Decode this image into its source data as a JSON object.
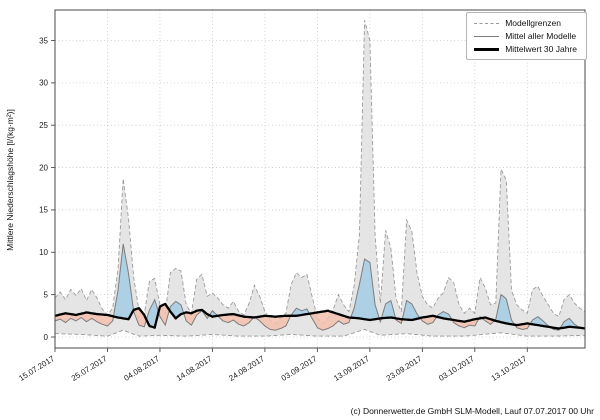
{
  "figure": {
    "caption": "(c) Donnerwetter.de GmbH SLM-Modell, Lauf 07.07.2017 00 Uhr"
  },
  "legend": {
    "items": [
      {
        "label": "Modellgrenzen",
        "style": "dashed-gray"
      },
      {
        "label": "Mittel aller Modelle",
        "style": "solid-gray"
      },
      {
        "label": "Mittelwert 30 Jahre",
        "style": "solid-black-thick"
      }
    ]
  },
  "chart_data": {
    "type": "line",
    "title": "",
    "xlabel": "",
    "ylabel": "Mittlere Niederschlagshöhe [l/(kg·m²)]",
    "x_unit": "Tage ab 15.07.2017",
    "xlim": [
      0,
      101
    ],
    "ylim": [
      -1.3,
      38.6
    ],
    "grid": true,
    "legend_position": "top-right",
    "y_ticks": [
      0,
      5,
      10,
      15,
      20,
      25,
      30,
      35
    ],
    "x_ticks": [
      {
        "x": 0,
        "label": "15.07.2017"
      },
      {
        "x": 10,
        "label": "25.07.2017"
      },
      {
        "x": 20,
        "label": "04.08.2017"
      },
      {
        "x": 30,
        "label": "14.08.2017"
      },
      {
        "x": 40,
        "label": "24.08.2017"
      },
      {
        "x": 50,
        "label": "03.09.2017"
      },
      {
        "x": 60,
        "label": "13.09.2017"
      },
      {
        "x": 70,
        "label": "23.09.2017"
      },
      {
        "x": 80,
        "label": "03.10.2017"
      },
      {
        "x": 90,
        "label": "13.10.2017"
      }
    ],
    "colors": {
      "band": "#dcdcdc",
      "boundary": "#9b9b9b",
      "mean": "#7d7d7d",
      "climate": "#000000",
      "above": "#a7cde4",
      "below": "#f4c1ae",
      "below_edge": "#e39a86",
      "grid": "#c9c9c9",
      "frame": "#4a4a4a",
      "text": "#1a1a1a"
    },
    "series": [
      {
        "key": "upper",
        "name": "Modellgrenze (oben)",
        "points": [
          [
            0,
            4.6
          ],
          [
            1,
            5.3
          ],
          [
            2,
            4.4
          ],
          [
            3,
            5.6
          ],
          [
            4,
            4.9
          ],
          [
            5,
            5.7
          ],
          [
            6,
            4.3
          ],
          [
            7,
            5.6
          ],
          [
            8,
            4.6
          ],
          [
            9,
            3.3
          ],
          [
            10,
            2.6
          ],
          [
            11,
            3.4
          ],
          [
            12,
            8
          ],
          [
            13,
            18.7
          ],
          [
            14,
            14
          ],
          [
            15,
            7
          ],
          [
            16,
            3.2
          ],
          [
            17,
            2.6
          ],
          [
            18,
            6.6
          ],
          [
            19,
            6.9
          ],
          [
            20,
            3.8
          ],
          [
            21,
            2.8
          ],
          [
            22,
            7.6
          ],
          [
            23,
            8.1
          ],
          [
            24,
            7.8
          ],
          [
            25,
            3.8
          ],
          [
            26,
            2.8
          ],
          [
            27,
            6.8
          ],
          [
            28,
            7.4
          ],
          [
            29,
            4.8
          ],
          [
            30,
            5.2
          ],
          [
            31,
            4.6
          ],
          [
            32,
            3.8
          ],
          [
            33,
            3.4
          ],
          [
            34,
            4.2
          ],
          [
            35,
            3
          ],
          [
            36,
            2.6
          ],
          [
            37,
            4
          ],
          [
            38,
            6.1
          ],
          [
            39,
            4.8
          ],
          [
            40,
            3
          ],
          [
            41,
            2
          ],
          [
            42,
            1.6
          ],
          [
            43,
            2.2
          ],
          [
            44,
            2.8
          ],
          [
            45,
            6.2
          ],
          [
            46,
            7.6
          ],
          [
            47,
            7
          ],
          [
            48,
            7.4
          ],
          [
            49,
            4.8
          ],
          [
            50,
            2.2
          ],
          [
            51,
            1.6
          ],
          [
            52,
            2.2
          ],
          [
            53,
            3.2
          ],
          [
            54,
            5
          ],
          [
            55,
            3.8
          ],
          [
            56,
            3
          ],
          [
            57,
            6
          ],
          [
            58,
            12
          ],
          [
            59,
            37.4
          ],
          [
            60,
            35
          ],
          [
            61,
            12
          ],
          [
            62,
            4
          ],
          [
            63,
            12.6
          ],
          [
            64,
            10.5
          ],
          [
            65,
            4.5
          ],
          [
            66,
            3
          ],
          [
            67,
            13.8
          ],
          [
            68,
            12.5
          ],
          [
            69,
            7.5
          ],
          [
            70,
            4.8
          ],
          [
            71,
            3.8
          ],
          [
            72,
            3.4
          ],
          [
            73,
            4.6
          ],
          [
            74,
            5.2
          ],
          [
            75,
            7
          ],
          [
            76,
            6.4
          ],
          [
            77,
            3.8
          ],
          [
            78,
            2.8
          ],
          [
            79,
            3.4
          ],
          [
            80,
            2.8
          ],
          [
            81,
            7
          ],
          [
            82,
            5.8
          ],
          [
            83,
            3.8
          ],
          [
            84,
            4
          ],
          [
            85,
            19.8
          ],
          [
            86,
            18.5
          ],
          [
            87,
            5.5
          ],
          [
            88,
            3.8
          ],
          [
            89,
            3.2
          ],
          [
            90,
            2.8
          ],
          [
            91,
            5.6
          ],
          [
            92,
            6
          ],
          [
            93,
            4.8
          ],
          [
            94,
            3.8
          ],
          [
            95,
            2.8
          ],
          [
            96,
            2.4
          ],
          [
            97,
            4.4
          ],
          [
            98,
            5
          ],
          [
            99,
            4
          ],
          [
            100,
            3.4
          ],
          [
            101,
            3
          ]
        ]
      },
      {
        "key": "lower",
        "name": "Modellgrenze (unten)",
        "points": [
          [
            0,
            0.4
          ],
          [
            5,
            0.3
          ],
          [
            10,
            0.1
          ],
          [
            13,
            0.8
          ],
          [
            16,
            0.1
          ],
          [
            20,
            0.2
          ],
          [
            25,
            0.1
          ],
          [
            30,
            0.3
          ],
          [
            35,
            0.1
          ],
          [
            40,
            0.1
          ],
          [
            45,
            0.3
          ],
          [
            50,
            0.1
          ],
          [
            55,
            0.1
          ],
          [
            59,
            0.9
          ],
          [
            62,
            0.2
          ],
          [
            67,
            0.4
          ],
          [
            72,
            0.1
          ],
          [
            78,
            0.1
          ],
          [
            85,
            0.5
          ],
          [
            90,
            0.1
          ],
          [
            95,
            0.1
          ],
          [
            101,
            0.2
          ]
        ]
      },
      {
        "key": "mean",
        "name": "Mittel aller Modelle",
        "points": [
          [
            0,
            1.9
          ],
          [
            1,
            2.1
          ],
          [
            2,
            1.7
          ],
          [
            3,
            2.2
          ],
          [
            4,
            1.9
          ],
          [
            5,
            2.3
          ],
          [
            6,
            1.8
          ],
          [
            7,
            2.2
          ],
          [
            8,
            1.8
          ],
          [
            9,
            1.5
          ],
          [
            10,
            1.3
          ],
          [
            11,
            1.9
          ],
          [
            12,
            5.5
          ],
          [
            13,
            11
          ],
          [
            14,
            7.5
          ],
          [
            15,
            3
          ],
          [
            16,
            1.4
          ],
          [
            17,
            1.2
          ],
          [
            18,
            3.2
          ],
          [
            19,
            4.4
          ],
          [
            20,
            2.4
          ],
          [
            21,
            1.4
          ],
          [
            22,
            3.6
          ],
          [
            23,
            4.2
          ],
          [
            24,
            3.8
          ],
          [
            25,
            1.9
          ],
          [
            26,
            1.4
          ],
          [
            27,
            2.6
          ],
          [
            28,
            3.1
          ],
          [
            29,
            2.2
          ],
          [
            30,
            3.1
          ],
          [
            31,
            2.5
          ],
          [
            32,
            1.9
          ],
          [
            33,
            1.7
          ],
          [
            34,
            2
          ],
          [
            35,
            1.5
          ],
          [
            36,
            1.3
          ],
          [
            37,
            1.7
          ],
          [
            38,
            2.4
          ],
          [
            39,
            1.9
          ],
          [
            40,
            1.3
          ],
          [
            41,
            0.9
          ],
          [
            42,
            0.8
          ],
          [
            43,
            1
          ],
          [
            44,
            1.3
          ],
          [
            45,
            2.6
          ],
          [
            46,
            3.4
          ],
          [
            47,
            3.1
          ],
          [
            48,
            3.3
          ],
          [
            49,
            2.2
          ],
          [
            50,
            1.1
          ],
          [
            51,
            0.8
          ],
          [
            52,
            1
          ],
          [
            53,
            1.3
          ],
          [
            54,
            1.9
          ],
          [
            55,
            1.5
          ],
          [
            56,
            1.7
          ],
          [
            57,
            3.4
          ],
          [
            58,
            6.2
          ],
          [
            59,
            9.2
          ],
          [
            60,
            8.8
          ],
          [
            61,
            3.8
          ],
          [
            62,
            1.8
          ],
          [
            63,
            3.9
          ],
          [
            64,
            4.3
          ],
          [
            65,
            2
          ],
          [
            66,
            1.6
          ],
          [
            67,
            4.3
          ],
          [
            68,
            3.9
          ],
          [
            69,
            2.7
          ],
          [
            70,
            1.9
          ],
          [
            71,
            1.5
          ],
          [
            72,
            1.7
          ],
          [
            73,
            2.6
          ],
          [
            74,
            3
          ],
          [
            75,
            2.7
          ],
          [
            76,
            1.7
          ],
          [
            77,
            1.3
          ],
          [
            78,
            1.1
          ],
          [
            79,
            1.4
          ],
          [
            80,
            1.3
          ],
          [
            81,
            2.4
          ],
          [
            82,
            1.9
          ],
          [
            83,
            1.5
          ],
          [
            84,
            2.1
          ],
          [
            85,
            5
          ],
          [
            86,
            4.5
          ],
          [
            87,
            2
          ],
          [
            88,
            1.1
          ],
          [
            89,
            0.9
          ],
          [
            90,
            1
          ],
          [
            91,
            2
          ],
          [
            92,
            2.4
          ],
          [
            93,
            1.9
          ],
          [
            94,
            1.3
          ],
          [
            95,
            0.9
          ],
          [
            96,
            0.8
          ],
          [
            97,
            1.8
          ],
          [
            98,
            2.2
          ],
          [
            99,
            1.5
          ],
          [
            100,
            1.1
          ],
          [
            101,
            1
          ]
        ]
      },
      {
        "key": "clim",
        "name": "Mittelwert 30 Jahre",
        "points": [
          [
            0,
            2.5
          ],
          [
            2,
            2.8
          ],
          [
            4,
            2.6
          ],
          [
            6,
            2.9
          ],
          [
            8,
            2.7
          ],
          [
            10,
            2.6
          ],
          [
            12,
            2.3
          ],
          [
            14,
            2.1
          ],
          [
            15,
            3.2
          ],
          [
            16,
            3.4
          ],
          [
            17,
            2.6
          ],
          [
            18,
            1.3
          ],
          [
            19,
            1.1
          ],
          [
            20,
            3.6
          ],
          [
            21,
            3.9
          ],
          [
            22,
            3
          ],
          [
            23,
            2.2
          ],
          [
            24,
            2.7
          ],
          [
            25,
            2.9
          ],
          [
            26,
            2.8
          ],
          [
            27,
            3.1
          ],
          [
            28,
            3.2
          ],
          [
            29,
            2.7
          ],
          [
            30,
            2.4
          ],
          [
            32,
            2.6
          ],
          [
            34,
            2.7
          ],
          [
            36,
            2.4
          ],
          [
            38,
            2.3
          ],
          [
            40,
            2.5
          ],
          [
            42,
            2.4
          ],
          [
            44,
            2.5
          ],
          [
            46,
            2.5
          ],
          [
            48,
            2.7
          ],
          [
            50,
            2.9
          ],
          [
            52,
            3.1
          ],
          [
            54,
            2.7
          ],
          [
            56,
            2.3
          ],
          [
            58,
            2.2
          ],
          [
            60,
            2
          ],
          [
            62,
            2.2
          ],
          [
            64,
            2.3
          ],
          [
            66,
            2.1
          ],
          [
            68,
            2
          ],
          [
            70,
            2.3
          ],
          [
            72,
            2.5
          ],
          [
            74,
            2.2
          ],
          [
            76,
            2
          ],
          [
            78,
            1.8
          ],
          [
            80,
            2.1
          ],
          [
            82,
            2.3
          ],
          [
            84,
            1.9
          ],
          [
            86,
            1.6
          ],
          [
            88,
            1.4
          ],
          [
            90,
            1.6
          ],
          [
            92,
            1.4
          ],
          [
            94,
            1.2
          ],
          [
            96,
            1
          ],
          [
            98,
            1.2
          ],
          [
            100,
            1.1
          ],
          [
            101,
            1
          ]
        ]
      }
    ]
  }
}
